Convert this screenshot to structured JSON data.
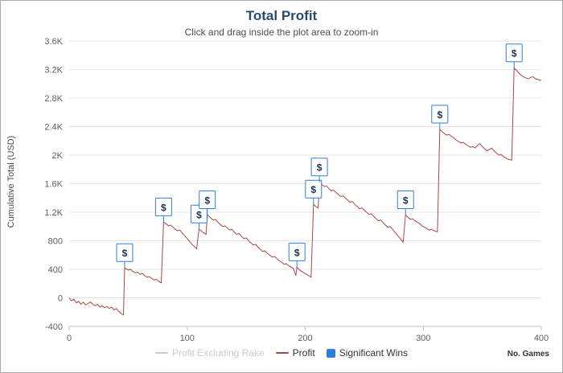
{
  "header": {
    "title": "Total Profit",
    "subtitle": "Click and drag inside the plot area to zoom-in",
    "title_color": "#274b6d",
    "subtitle_color": "#4d4d4d"
  },
  "axes": {
    "y_title": "Cumulative Total (USD)",
    "y_title_color": "#4d4d4d",
    "x_title": "No. Games"
  },
  "legend": {
    "items": [
      {
        "label": "Profit Excluding Rake",
        "swatch": "line",
        "color": "#cccccc",
        "text_color": "#cccccc"
      },
      {
        "label": "Profit",
        "swatch": "line",
        "color": "#AA4643",
        "text_color": "#333333"
      },
      {
        "label": "Significant Wins",
        "swatch": "square",
        "color": "#2f7ed8",
        "text_color": "#333333"
      }
    ]
  },
  "chart_data": {
    "type": "line",
    "title": "Total Profit",
    "subtitle": "Click and drag inside the plot area to zoom-in",
    "xlabel": "No. Games",
    "ylabel": "Cumulative Total (USD)",
    "xlim": [
      0,
      400
    ],
    "ylim": [
      -400,
      3600
    ],
    "x_ticks": [
      0,
      100,
      200,
      300,
      400
    ],
    "y_ticks": [
      -400,
      0,
      400,
      800,
      1200,
      1600,
      2000,
      2400,
      2800,
      3200,
      3600
    ],
    "y_tick_labels": [
      "-400",
      "0",
      "400",
      "800",
      "1.2K",
      "1.6K",
      "2K",
      "2.4K",
      "2.8K",
      "3.2K",
      "3.6K"
    ],
    "grid": "horizontal",
    "legend_position": "bottom",
    "axis_label_color": "#606060",
    "grid_color": "#e6e6e6",
    "axis_line_color": "#c0c0c0",
    "series": [
      {
        "name": "Profit",
        "color": "#AA4643",
        "points": [
          [
            0,
            0
          ],
          [
            2,
            -40
          ],
          [
            4,
            -20
          ],
          [
            6,
            -70
          ],
          [
            8,
            -50
          ],
          [
            10,
            -90
          ],
          [
            12,
            -60
          ],
          [
            14,
            -100
          ],
          [
            16,
            -80
          ],
          [
            18,
            -60
          ],
          [
            20,
            -90
          ],
          [
            22,
            -110
          ],
          [
            24,
            -90
          ],
          [
            26,
            -130
          ],
          [
            28,
            -110
          ],
          [
            30,
            -140
          ],
          [
            32,
            -120
          ],
          [
            34,
            -150
          ],
          [
            36,
            -130
          ],
          [
            38,
            -170
          ],
          [
            40,
            -150
          ],
          [
            42,
            -190
          ],
          [
            44,
            -220
          ],
          [
            46,
            -240
          ],
          [
            47,
            420
          ],
          [
            48,
            410
          ],
          [
            50,
            390
          ],
          [
            52,
            400
          ],
          [
            54,
            370
          ],
          [
            56,
            350
          ],
          [
            58,
            360
          ],
          [
            60,
            330
          ],
          [
            62,
            340
          ],
          [
            64,
            310
          ],
          [
            66,
            290
          ],
          [
            68,
            300
          ],
          [
            70,
            270
          ],
          [
            72,
            250
          ],
          [
            74,
            260
          ],
          [
            76,
            230
          ],
          [
            78,
            210
          ],
          [
            80,
            1060
          ],
          [
            82,
            1040
          ],
          [
            84,
            1010
          ],
          [
            86,
            1020
          ],
          [
            88,
            990
          ],
          [
            90,
            960
          ],
          [
            92,
            940
          ],
          [
            94,
            950
          ],
          [
            96,
            900
          ],
          [
            98,
            870
          ],
          [
            100,
            830
          ],
          [
            102,
            790
          ],
          [
            104,
            750
          ],
          [
            106,
            720
          ],
          [
            108,
            690
          ],
          [
            110,
            960
          ],
          [
            112,
            940
          ],
          [
            114,
            910
          ],
          [
            116,
            890
          ],
          [
            117,
            1160
          ],
          [
            118,
            1150
          ],
          [
            120,
            1120
          ],
          [
            122,
            1090
          ],
          [
            124,
            1100
          ],
          [
            126,
            1060
          ],
          [
            128,
            1030
          ],
          [
            130,
            1000
          ],
          [
            132,
            1010
          ],
          [
            134,
            980
          ],
          [
            136,
            950
          ],
          [
            138,
            960
          ],
          [
            140,
            920
          ],
          [
            142,
            890
          ],
          [
            144,
            900
          ],
          [
            146,
            860
          ],
          [
            148,
            830
          ],
          [
            150,
            840
          ],
          [
            152,
            800
          ],
          [
            154,
            770
          ],
          [
            156,
            740
          ],
          [
            158,
            750
          ],
          [
            160,
            710
          ],
          [
            162,
            680
          ],
          [
            164,
            650
          ],
          [
            166,
            660
          ],
          [
            168,
            620
          ],
          [
            170,
            600
          ],
          [
            172,
            570
          ],
          [
            174,
            580
          ],
          [
            176,
            550
          ],
          [
            178,
            520
          ],
          [
            180,
            500
          ],
          [
            182,
            470
          ],
          [
            184,
            480
          ],
          [
            186,
            450
          ],
          [
            188,
            430
          ],
          [
            190,
            410
          ],
          [
            192,
            310
          ],
          [
            193,
            430
          ],
          [
            194,
            410
          ],
          [
            196,
            380
          ],
          [
            198,
            360
          ],
          [
            200,
            340
          ],
          [
            202,
            320
          ],
          [
            204,
            300
          ],
          [
            205,
            290
          ],
          [
            207,
            1310
          ],
          [
            209,
            1280
          ],
          [
            211,
            1260
          ],
          [
            212,
            1620
          ],
          [
            214,
            1590
          ],
          [
            216,
            1560
          ],
          [
            218,
            1570
          ],
          [
            220,
            1530
          ],
          [
            222,
            1500
          ],
          [
            224,
            1510
          ],
          [
            226,
            1480
          ],
          [
            228,
            1450
          ],
          [
            230,
            1420
          ],
          [
            232,
            1430
          ],
          [
            234,
            1400
          ],
          [
            236,
            1370
          ],
          [
            238,
            1340
          ],
          [
            240,
            1350
          ],
          [
            242,
            1310
          ],
          [
            244,
            1280
          ],
          [
            246,
            1250
          ],
          [
            248,
            1260
          ],
          [
            250,
            1230
          ],
          [
            252,
            1200
          ],
          [
            254,
            1170
          ],
          [
            256,
            1180
          ],
          [
            258,
            1140
          ],
          [
            260,
            1110
          ],
          [
            262,
            1080
          ],
          [
            264,
            1090
          ],
          [
            266,
            1050
          ],
          [
            268,
            1020
          ],
          [
            270,
            990
          ],
          [
            272,
            1000
          ],
          [
            274,
            960
          ],
          [
            276,
            920
          ],
          [
            278,
            880
          ],
          [
            280,
            840
          ],
          [
            282,
            800
          ],
          [
            283,
            780
          ],
          [
            285,
            1160
          ],
          [
            287,
            1130
          ],
          [
            289,
            1100
          ],
          [
            291,
            1110
          ],
          [
            293,
            1080
          ],
          [
            295,
            1060
          ],
          [
            297,
            1040
          ],
          [
            299,
            1010
          ],
          [
            301,
            990
          ],
          [
            303,
            970
          ],
          [
            305,
            950
          ],
          [
            307,
            960
          ],
          [
            309,
            940
          ],
          [
            311,
            930
          ],
          [
            312,
            925
          ],
          [
            314,
            2360
          ],
          [
            316,
            2330
          ],
          [
            318,
            2300
          ],
          [
            320,
            2280
          ],
          [
            322,
            2290
          ],
          [
            324,
            2260
          ],
          [
            326,
            2240
          ],
          [
            328,
            2210
          ],
          [
            330,
            2190
          ],
          [
            332,
            2170
          ],
          [
            334,
            2180
          ],
          [
            336,
            2150
          ],
          [
            338,
            2130
          ],
          [
            340,
            2110
          ],
          [
            342,
            2120
          ],
          [
            344,
            2100
          ],
          [
            346,
            2140
          ],
          [
            348,
            2160
          ],
          [
            350,
            2120
          ],
          [
            352,
            2090
          ],
          [
            354,
            2060
          ],
          [
            356,
            2080
          ],
          [
            358,
            2100
          ],
          [
            360,
            2060
          ],
          [
            362,
            2030
          ],
          [
            364,
            2000
          ],
          [
            366,
            2010
          ],
          [
            368,
            1980
          ],
          [
            370,
            1960
          ],
          [
            372,
            1940
          ],
          [
            374,
            1935
          ],
          [
            375,
            1930
          ],
          [
            377,
            3220
          ],
          [
            379,
            3190
          ],
          [
            381,
            3150
          ],
          [
            383,
            3120
          ],
          [
            385,
            3100
          ],
          [
            387,
            3080
          ],
          [
            389,
            3070
          ],
          [
            391,
            3090
          ],
          [
            393,
            3100
          ],
          [
            395,
            3070
          ],
          [
            397,
            3060
          ],
          [
            399,
            3050
          ],
          [
            400,
            3050
          ]
        ]
      }
    ],
    "flags": {
      "name": "Significant Wins",
      "color": "#2f7ed8",
      "symbol": "$",
      "text_color": "#1a3152",
      "points": [
        [
          47,
          420
        ],
        [
          80,
          1060
        ],
        [
          110,
          960
        ],
        [
          117,
          1160
        ],
        [
          193,
          430
        ],
        [
          207,
          1310
        ],
        [
          212,
          1620
        ],
        [
          285,
          1160
        ],
        [
          314,
          2360
        ],
        [
          377,
          3220
        ]
      ]
    }
  }
}
